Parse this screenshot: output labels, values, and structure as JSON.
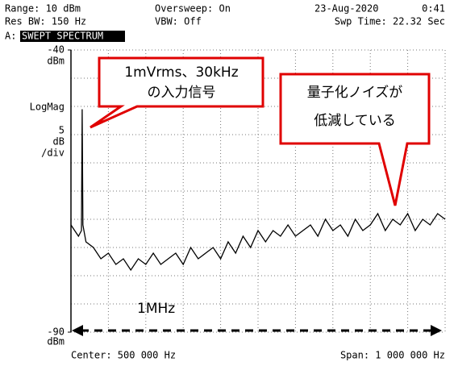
{
  "header": {
    "range": "Range: 10 dBm",
    "oversweep": "Oversweep: On",
    "date": "23-Aug-2020",
    "time": "0:41",
    "res_bw": "Res BW: 150 Hz",
    "vbw": "VBW: Off",
    "swp_time": "Swp Time: 22.32 Sec",
    "trace_id": "A:",
    "mode": "SWEPT SPECTRUM"
  },
  "footer": {
    "center": "Center: 500 000 Hz",
    "span": "Span: 1 000 000 Hz"
  },
  "chart_data": {
    "type": "line",
    "color": "#000000",
    "y_unit": "dBm",
    "scale_mode": "LogMag",
    "y_per_div": 5,
    "y_per_div_unit": "dB",
    "y_per_div_suffix": "/div",
    "x_divisions": 10,
    "grid": true,
    "xlim": [
      0,
      1000000
    ],
    "ylim": [
      -90,
      -40
    ],
    "yticks": [
      -40,
      -90
    ],
    "x": [
      0,
      10000,
      20000,
      28000,
      30000,
      32000,
      40000,
      60000,
      80000,
      100000,
      120000,
      140000,
      160000,
      180000,
      200000,
      220000,
      240000,
      260000,
      280000,
      300000,
      320000,
      340000,
      360000,
      380000,
      400000,
      420000,
      440000,
      460000,
      480000,
      500000,
      520000,
      540000,
      560000,
      580000,
      600000,
      620000,
      640000,
      660000,
      680000,
      700000,
      720000,
      740000,
      760000,
      780000,
      800000,
      820000,
      840000,
      860000,
      880000,
      900000,
      920000,
      940000,
      960000,
      980000,
      1000000
    ],
    "values": [
      -71,
      -72,
      -73,
      -72,
      -50.5,
      -71,
      -74,
      -75,
      -77,
      -76,
      -78,
      -77,
      -79,
      -77,
      -78,
      -76,
      -78,
      -77,
      -76,
      -78,
      -75,
      -77,
      -76,
      -75,
      -77,
      -74,
      -76,
      -73,
      -75,
      -72,
      -74,
      -72,
      -73,
      -71,
      -73,
      -72,
      -71,
      -73,
      -70,
      -72,
      -71,
      -73,
      -70,
      -72,
      -71,
      -69,
      -72,
      -70,
      -71,
      -69,
      -72,
      -70,
      -71,
      -69,
      -70
    ],
    "annotations": {
      "signal_line1": "1mVrms、30kHz",
      "signal_line2": "の入力信号",
      "noise_line1": "量子化ノイズが",
      "noise_line2": "低減している",
      "span_label": "1MHz"
    }
  }
}
